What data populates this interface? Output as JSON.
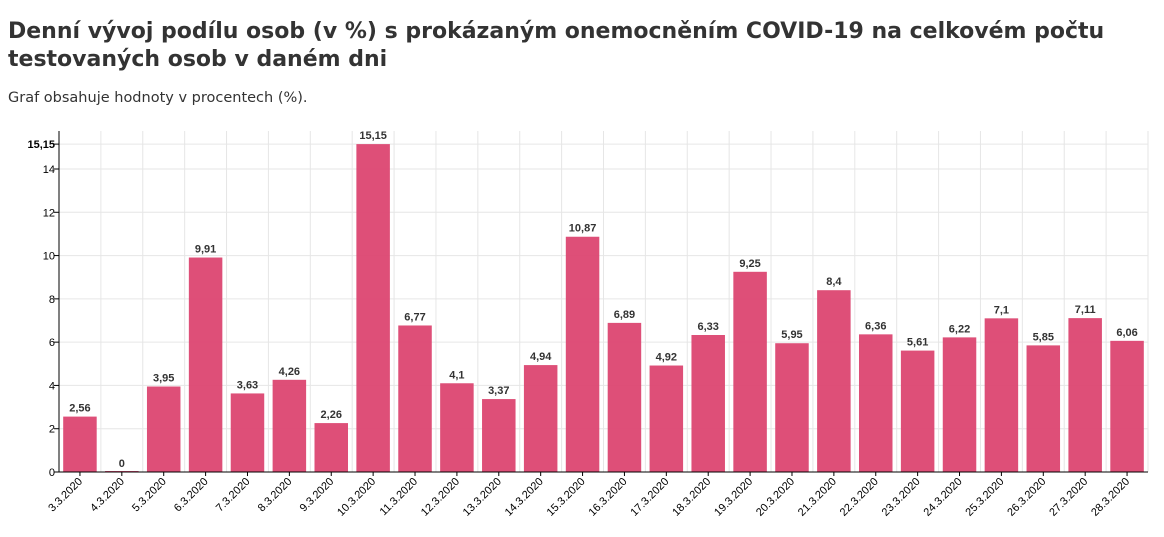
{
  "chart_data": {
    "type": "bar",
    "title": "Denní vývoj podílu osob (v %) s prokázaným onemocněním COVID-19 na celkovém počtu testovaných osob v daném dni",
    "subtitle": "Graf obsahuje hodnoty v procentech (%).",
    "categories": [
      "3.3.2020",
      "4.3.2020",
      "5.3.2020",
      "6.3.2020",
      "7.3.2020",
      "8.3.2020",
      "9.3.2020",
      "10.3.2020",
      "11.3.2020",
      "12.3.2020",
      "13.3.2020",
      "14.3.2020",
      "15.3.2020",
      "16.3.2020",
      "17.3.2020",
      "18.3.2020",
      "19.3.2020",
      "20.3.2020",
      "21.3.2020",
      "22.3.2020",
      "23.3.2020",
      "24.3.2020",
      "25.3.2020",
      "26.3.2020",
      "27.3.2020",
      "28.3.2020"
    ],
    "values": [
      2.56,
      0,
      3.95,
      9.91,
      3.63,
      4.26,
      2.26,
      15.15,
      6.77,
      4.1,
      3.37,
      4.94,
      10.87,
      6.89,
      4.92,
      6.33,
      9.25,
      5.95,
      8.4,
      6.36,
      5.61,
      6.22,
      7.1,
      5.85,
      7.11,
      6.06
    ],
    "value_labels": [
      "2,56",
      "0",
      "3,95",
      "9,91",
      "3,63",
      "4,26",
      "2,26",
      "15,15",
      "6,77",
      "4,1",
      "3,37",
      "4,94",
      "10,87",
      "6,89",
      "4,92",
      "6,33",
      "9,25",
      "5,95",
      "8,4",
      "6,36",
      "5,61",
      "6,22",
      "7,1",
      "5,85",
      "7,11",
      "6,06"
    ],
    "y_ticks": [
      0,
      2,
      4,
      6,
      8,
      10,
      12,
      14
    ],
    "y_tick_labels": [
      "0",
      "2",
      "4",
      "6",
      "8",
      "10",
      "12",
      "14"
    ],
    "y_max_label": "15,15",
    "ylim": [
      0,
      15.15
    ],
    "xlabel": "",
    "ylabel": "",
    "grid": true,
    "bar_color": "#dc4671"
  }
}
